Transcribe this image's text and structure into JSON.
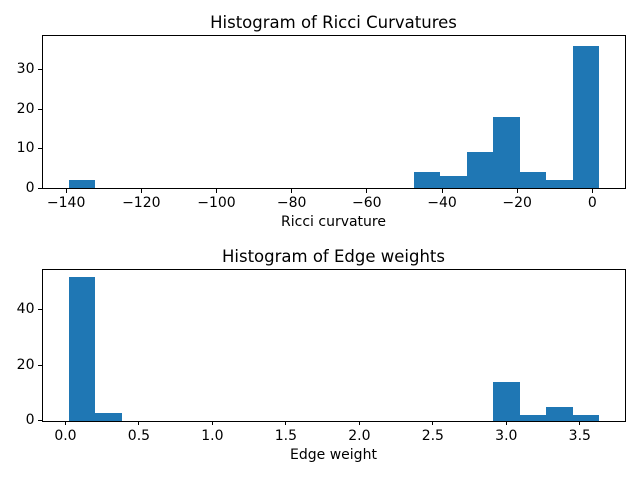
{
  "figure": {
    "background": "#ffffff",
    "text_color": "#000000"
  },
  "chart_data": [
    {
      "type": "bar",
      "kind": "histogram",
      "title": "Histogram of Ricci Curvatures",
      "xlabel": "Ricci curvature",
      "ylabel": "",
      "bar_color": "#1f77b4",
      "bars": [
        {
          "x0": -139.5,
          "x1": -132.44,
          "count": 2
        },
        {
          "x0": -47.66,
          "x1": -40.6,
          "count": 4
        },
        {
          "x0": -40.6,
          "x1": -33.54,
          "count": 3
        },
        {
          "x0": -33.54,
          "x1": -26.48,
          "count": 9
        },
        {
          "x0": -26.48,
          "x1": -19.42,
          "count": 18
        },
        {
          "x0": -19.42,
          "x1": -12.36,
          "count": 4
        },
        {
          "x0": -12.36,
          "x1": -5.3,
          "count": 2
        },
        {
          "x0": -5.3,
          "x1": 1.76,
          "count": 36
        }
      ],
      "xlim": [
        -146.56,
        8.82
      ],
      "ylim": [
        0,
        38.5
      ],
      "xticks": {
        "values": [
          -140,
          -120,
          -100,
          -80,
          -60,
          -40,
          -20,
          0
        ],
        "labels": [
          "−140",
          "−120",
          "−100",
          "−80",
          "−60",
          "−40",
          "−20",
          "0"
        ]
      },
      "yticks": {
        "values": [
          0,
          10,
          20,
          30
        ],
        "labels": [
          "0",
          "10",
          "20",
          "30"
        ]
      },
      "grid": false,
      "legend": null
    },
    {
      "type": "bar",
      "kind": "histogram",
      "title": "Histogram of Edge weights",
      "xlabel": "Edge weight",
      "ylabel": "",
      "bar_color": "#1f77b4",
      "bars": [
        {
          "x0": 0.018,
          "x1": 0.1986,
          "count": 52
        },
        {
          "x0": 0.1986,
          "x1": 0.3792,
          "count": 3
        },
        {
          "x0": 2.9082,
          "x1": 3.0888,
          "count": 14
        },
        {
          "x0": 3.0888,
          "x1": 3.2694,
          "count": 2
        },
        {
          "x0": 3.2694,
          "x1": 3.45,
          "count": 5
        },
        {
          "x0": 3.45,
          "x1": 3.6306,
          "count": 2
        }
      ],
      "xlim": [
        -0.163,
        3.811
      ],
      "ylim": [
        0,
        54.5
      ],
      "xticks": {
        "values": [
          0.0,
          0.5,
          1.0,
          1.5,
          2.0,
          2.5,
          3.0,
          3.5
        ],
        "labels": [
          "0.0",
          "0.5",
          "1.0",
          "1.5",
          "2.0",
          "2.5",
          "3.0",
          "3.5"
        ]
      },
      "yticks": {
        "values": [
          0,
          20,
          40
        ],
        "labels": [
          "0",
          "20",
          "40"
        ]
      },
      "grid": false,
      "legend": null
    }
  ]
}
